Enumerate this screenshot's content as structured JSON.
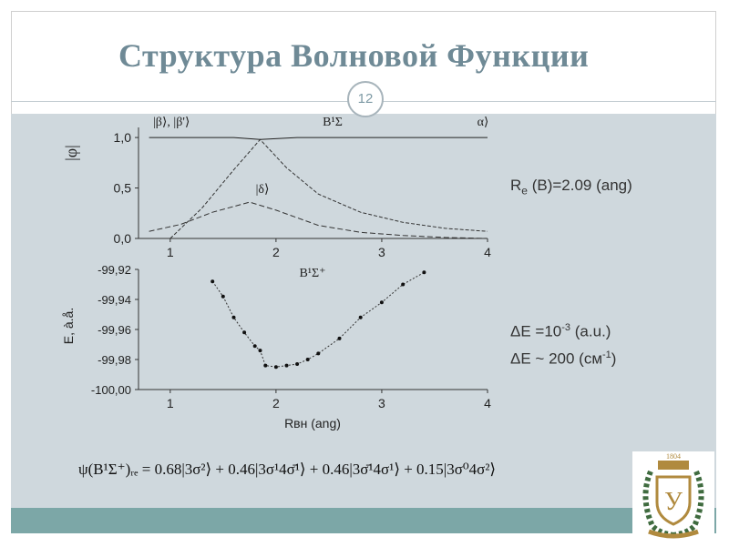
{
  "slide": {
    "title": "Структура Волновой Функции",
    "page_number": "12"
  },
  "annotations": {
    "re_pre": "R",
    "re_sub": "e",
    "re_post": " (B)=2.09 (ang)",
    "de1_pre": "ΔE =10",
    "de1_sup": "-3",
    "de1_post": " (a.u.)",
    "de2_pre": "ΔE ~ 200 (см",
    "de2_sup": "-1",
    "de2_post": ")"
  },
  "formula": {
    "text": "ψ(B¹Σ⁺)ᵣₑ = 0.68|3σ²⟩ + 0.46|3σ¹4σ̄¹⟩ + 0.46|3σ̄¹4σ¹⟩ + 0.15|3σ⁰4σ²⟩"
  },
  "logo": {
    "year": "1804",
    "letter": "У",
    "colors": {
      "gold": "#b08a3e",
      "green": "#3f6b3f"
    }
  },
  "colors": {
    "title": "#6f8a96",
    "content_bg": "#cfd8dd",
    "band": "#7ca7a7"
  },
  "chart_data": [
    {
      "type": "line",
      "title": "B¹Σ",
      "ylabel": "|φ|",
      "xlabel": "B¹Σ⁺",
      "xlim": [
        0.7,
        4
      ],
      "ylim": [
        0,
        1.1
      ],
      "xticks": [
        "1",
        "2",
        "3",
        "4"
      ],
      "yticks": [
        "0,0",
        "0,5",
        "1,0"
      ],
      "series_labels": [
        "|β⟩, |β'⟩",
        "|δ⟩",
        "α⟩"
      ],
      "series": [
        {
          "name": "α⟩",
          "x": [
            0.8,
            1.2,
            1.6,
            1.85,
            2.2,
            3.0,
            4.0
          ],
          "values": [
            1.0,
            1.0,
            1.0,
            0.98,
            1.0,
            1.0,
            1.0
          ]
        },
        {
          "name": "|β⟩, |β'⟩",
          "x": [
            1.0,
            1.3,
            1.6,
            1.85,
            2.1,
            2.4,
            2.8,
            3.2,
            3.6,
            4.0
          ],
          "values": [
            0.0,
            0.3,
            0.68,
            0.98,
            0.7,
            0.44,
            0.26,
            0.16,
            0.1,
            0.07
          ]
        },
        {
          "name": "|δ⟩",
          "x": [
            0.8,
            1.1,
            1.4,
            1.75,
            2.0,
            2.4,
            2.8,
            3.2,
            3.6,
            4.0
          ],
          "values": [
            0.07,
            0.14,
            0.26,
            0.36,
            0.28,
            0.13,
            0.06,
            0.03,
            0.01,
            0.0
          ]
        }
      ]
    },
    {
      "type": "scatter",
      "ylabel": "E, à.å.",
      "xlabel": "Rвн (ang)",
      "xlim": [
        0.7,
        4
      ],
      "ylim": [
        -100.0,
        -99.92
      ],
      "xticks": [
        "1",
        "2",
        "3",
        "4"
      ],
      "yticks": [
        "-99,92",
        "-99,94",
        "-99,96",
        "-99,98",
        "-100,00"
      ],
      "series": [
        {
          "name": "",
          "x": [
            1.4,
            1.5,
            1.6,
            1.7,
            1.8,
            1.85,
            1.9,
            2.0,
            2.1,
            2.2,
            2.3,
            2.4,
            2.6,
            2.8,
            3.0,
            3.2,
            3.4
          ],
          "values": [
            -99.928,
            -99.938,
            -99.952,
            -99.962,
            -99.971,
            -99.974,
            -99.984,
            -99.985,
            -99.984,
            -99.983,
            -99.98,
            -99.976,
            -99.966,
            -99.952,
            -99.942,
            -99.93,
            -99.922
          ]
        }
      ]
    }
  ]
}
